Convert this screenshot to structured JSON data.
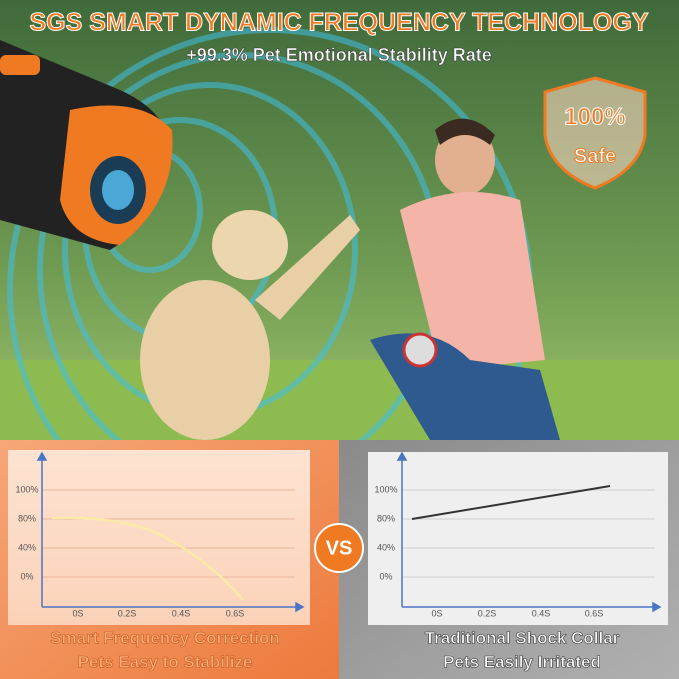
{
  "header": {
    "title": "SGS SMART DYNAMIC FREQUENCY TECHNOLOGY",
    "subtitle": "+99.3% Pet Emotional Stability Rate"
  },
  "badge": {
    "top": "100%",
    "bottom": "Safe"
  },
  "versus": "VS",
  "left_panel": {
    "yticks": [
      "100%",
      "80%",
      "40%",
      "0%"
    ],
    "xticks": [
      "0S",
      "0.2S",
      "0.4S",
      "0.6S"
    ],
    "caption": [
      "Smart Frequency Correction",
      "Pets Easy to Stabilize"
    ]
  },
  "right_panel": {
    "yticks": [
      "100%",
      "80%",
      "40%",
      "0%"
    ],
    "xticks": [
      "0S",
      "0.2S",
      "0.4S",
      "0.6S"
    ],
    "caption": [
      "Traditional Shock Collar",
      "Pets Easily Irritated"
    ]
  }
}
